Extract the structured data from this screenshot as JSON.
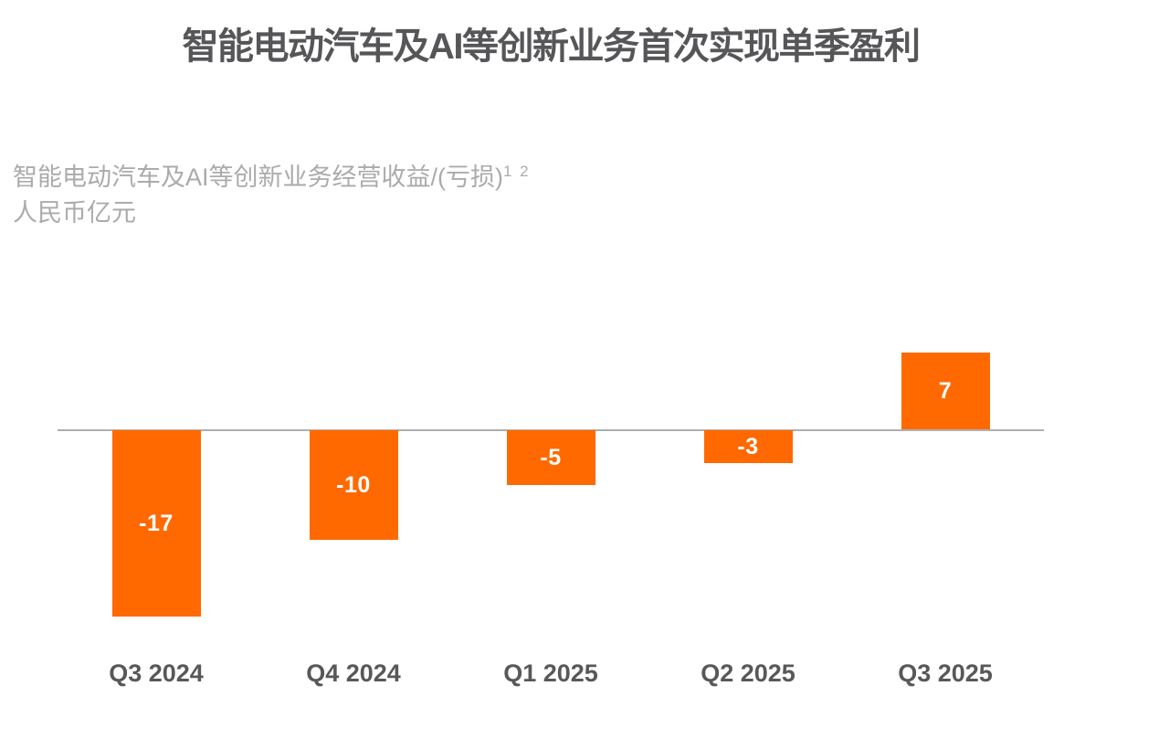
{
  "title": "智能电动汽车及AI等创新业务首次实现单季盈利",
  "subtitle": {
    "line1": "智能电动汽车及AI等创新业务经营收益/(亏损)",
    "superscript": "1 2",
    "line2": "人民币亿元"
  },
  "colors": {
    "bar": "#FF6900",
    "title_text": "#565659",
    "subtitle_text": "#ABABAB",
    "axis_line": "#AFAFAF",
    "axis_label": "#58585A",
    "bar_label": "#FFFFFF"
  },
  "chart_data": {
    "type": "bar",
    "title": "智能电动汽车及AI等创新业务首次实现单季盈利",
    "subtitle": "智能电动汽车及AI等创新业务经营收益/(亏损)¹ ²",
    "unit_label": "人民币亿元",
    "categories": [
      "Q3 2024",
      "Q4 2024",
      "Q1 2025",
      "Q2 2025",
      "Q3 2025"
    ],
    "values": [
      -17,
      -10,
      -5,
      -3,
      7
    ],
    "data_labels": [
      "-17",
      "-10",
      "-5",
      "-3",
      "7"
    ],
    "bar_color": "#FF6900",
    "baseline": 0,
    "ylim": [
      -20,
      10
    ],
    "grid": false,
    "legend": "none",
    "value_label_position": "inside-center"
  }
}
